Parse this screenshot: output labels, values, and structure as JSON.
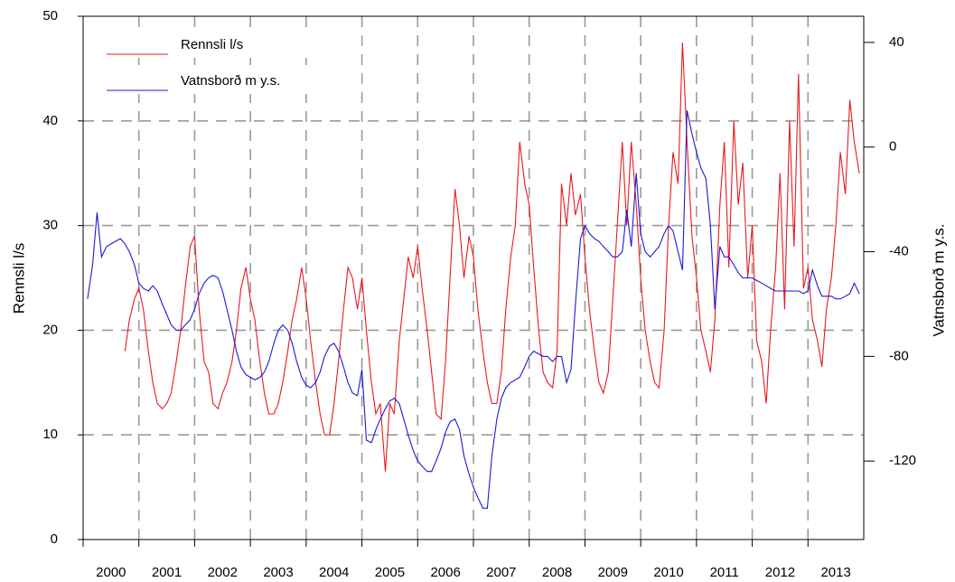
{
  "chart_data": {
    "type": "line",
    "ylabel": "Rennsli l/s",
    "y2label": "Vatnsborð m y.s.",
    "xlim": [
      2000,
      2014
    ],
    "xticks": [
      2000,
      2001,
      2002,
      2003,
      2004,
      2005,
      2006,
      2007,
      2008,
      2009,
      2010,
      2011,
      2012,
      2013
    ],
    "ylim": [
      0,
      50
    ],
    "yticks": [
      0,
      10,
      20,
      30,
      40,
      50
    ],
    "y2lim": [
      -150,
      50
    ],
    "y2ticks": [
      -120,
      -80,
      -40,
      0,
      40
    ],
    "grid": true,
    "legend": "upper left",
    "x": [
      2000.0,
      2000.08,
      2000.17,
      2000.25,
      2000.33,
      2000.42,
      2000.5,
      2000.58,
      2000.67,
      2000.75,
      2000.83,
      2000.92,
      2001.0,
      2001.08,
      2001.17,
      2001.25,
      2001.33,
      2001.42,
      2001.5,
      2001.58,
      2001.67,
      2001.75,
      2001.83,
      2001.92,
      2002.0,
      2002.08,
      2002.17,
      2002.25,
      2002.33,
      2002.42,
      2002.5,
      2002.58,
      2002.67,
      2002.75,
      2002.83,
      2002.92,
      2003.0,
      2003.08,
      2003.17,
      2003.25,
      2003.33,
      2003.42,
      2003.5,
      2003.58,
      2003.67,
      2003.75,
      2003.83,
      2003.92,
      2004.0,
      2004.08,
      2004.17,
      2004.25,
      2004.33,
      2004.42,
      2004.5,
      2004.58,
      2004.67,
      2004.75,
      2004.83,
      2004.92,
      2005.0,
      2005.08,
      2005.17,
      2005.25,
      2005.33,
      2005.42,
      2005.5,
      2005.58,
      2005.67,
      2005.75,
      2005.83,
      2005.92,
      2006.0,
      2006.08,
      2006.17,
      2006.25,
      2006.33,
      2006.42,
      2006.5,
      2006.58,
      2006.67,
      2006.75,
      2006.83,
      2006.92,
      2007.0,
      2007.08,
      2007.17,
      2007.25,
      2007.33,
      2007.42,
      2007.5,
      2007.58,
      2007.67,
      2007.75,
      2007.83,
      2007.92,
      2008.0,
      2008.08,
      2008.17,
      2008.25,
      2008.33,
      2008.42,
      2008.5,
      2008.58,
      2008.67,
      2008.75,
      2008.83,
      2008.92,
      2009.0,
      2009.08,
      2009.17,
      2009.25,
      2009.33,
      2009.42,
      2009.5,
      2009.58,
      2009.67,
      2009.75,
      2009.83,
      2009.92,
      2010.0,
      2010.08,
      2010.17,
      2010.25,
      2010.33,
      2010.42,
      2010.5,
      2010.58,
      2010.67,
      2010.75,
      2010.83,
      2010.92,
      2011.0,
      2011.08,
      2011.17,
      2011.25,
      2011.33,
      2011.42,
      2011.5,
      2011.58,
      2011.67,
      2011.75,
      2011.83,
      2011.92,
      2012.0,
      2012.08,
      2012.17,
      2012.25,
      2012.33,
      2012.42,
      2012.5,
      2012.58,
      2012.67,
      2012.75,
      2012.83,
      2012.92,
      2013.0,
      2013.08,
      2013.17,
      2013.25,
      2013.33,
      2013.42,
      2013.5,
      2013.58,
      2013.67,
      2013.75,
      2013.83,
      2013.92,
      2014.0
    ],
    "series": [
      {
        "name": "Rennsli l/s",
        "color": "#e8191f",
        "axis": "y",
        "values": [
          null,
          null,
          null,
          null,
          null,
          null,
          null,
          null,
          null,
          18,
          21,
          23,
          24,
          22,
          18,
          15,
          13,
          12.5,
          13,
          14,
          17,
          20,
          24,
          28,
          29,
          22,
          17,
          16,
          13,
          12.5,
          14,
          15,
          17,
          20,
          24,
          26,
          23,
          21,
          17,
          14,
          12,
          12,
          13,
          15,
          18,
          21,
          23,
          26,
          23,
          19,
          15,
          12,
          10,
          10,
          13,
          17,
          22,
          26,
          25,
          22,
          25,
          20,
          15,
          12,
          13,
          6.5,
          13,
          12,
          19,
          23,
          27,
          25,
          28,
          24,
          20,
          16,
          12,
          11.5,
          17,
          25,
          33.5,
          30,
          25,
          29,
          27,
          22,
          18,
          15,
          13,
          13,
          16,
          22,
          27,
          30,
          38,
          34,
          32,
          26,
          20,
          16,
          15,
          14.5,
          18,
          34,
          30,
          35,
          31,
          33,
          27,
          22,
          18,
          15,
          14,
          16,
          23,
          30,
          38,
          30,
          38,
          32,
          25,
          20,
          17,
          15,
          14.5,
          20,
          30,
          37,
          34,
          47.5,
          38,
          29,
          25,
          20,
          18,
          16,
          21,
          32,
          38,
          26,
          40,
          32,
          36,
          25,
          30,
          19,
          17,
          13,
          20,
          26,
          35,
          22,
          40,
          28,
          44.5,
          24,
          26,
          21,
          19,
          16.5,
          22,
          25,
          30,
          37,
          33,
          42,
          38,
          35,
          null
        ]
      },
      {
        "name": "Vatnsborð m y.s.",
        "color": "#1a1ad9",
        "axis": "y2",
        "values": [
          null,
          -58,
          -45,
          -25,
          -42,
          -38,
          -37,
          -36,
          -35,
          -37,
          -40,
          -45,
          -52,
          -54,
          -55,
          -53,
          -55,
          -60,
          -64,
          -68,
          -70,
          -70,
          -68,
          -66,
          -62,
          -56,
          -52,
          -50,
          -49,
          -50,
          -55,
          -62,
          -70,
          -78,
          -84,
          -87,
          -88,
          -89,
          -88,
          -86,
          -82,
          -75,
          -70,
          -68,
          -70,
          -75,
          -82,
          -88,
          -91,
          -92,
          -90,
          -86,
          -80,
          -76,
          -75,
          -78,
          -84,
          -90,
          -94,
          -95,
          -85,
          -112,
          -113,
          -108,
          -104,
          -100,
          -97,
          -96,
          -98,
          -104,
          -110,
          -116,
          -120,
          -122,
          -124,
          -124,
          -120,
          -115,
          -109,
          -105,
          -104,
          -108,
          -118,
          -125,
          -130,
          -134,
          -138,
          -138,
          -118,
          -104,
          -96,
          -92,
          -90,
          -89,
          -88,
          -84,
          -80,
          -78,
          -79,
          -80,
          -80,
          -82,
          -80,
          -80,
          -90,
          -85,
          -60,
          -35,
          -30,
          -33,
          -35,
          -36,
          -38,
          -40,
          -42,
          -42,
          -40,
          -24,
          -38,
          -10,
          -33,
          -40,
          -42,
          -40,
          -38,
          -33,
          -30,
          -32,
          -40,
          -47,
          14,
          5,
          -2,
          -8,
          -12,
          -30,
          -62,
          -38,
          -42,
          -42,
          -45,
          -48,
          -50,
          -50,
          -50,
          -51,
          -52,
          -53,
          -54,
          -55,
          -55,
          -55,
          -55,
          -55,
          -55,
          -56,
          -55,
          -47,
          -53,
          -57,
          -57,
          -57,
          -58,
          -58,
          -57,
          -56,
          -52,
          -56,
          null
        ]
      }
    ]
  }
}
